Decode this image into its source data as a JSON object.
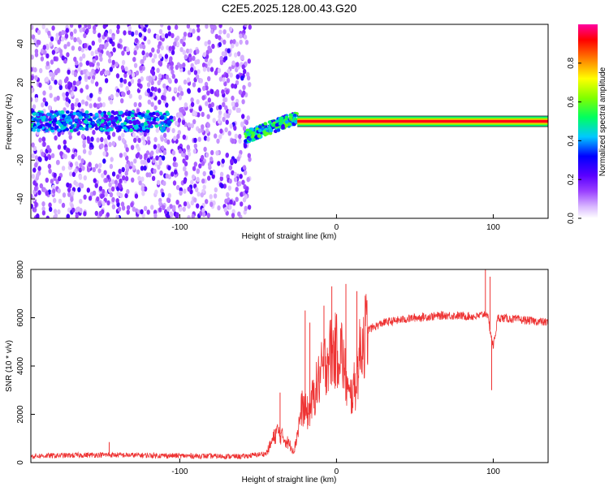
{
  "title": "C2E5.2025.128.00.43.G20",
  "chart_data": [
    {
      "type": "heatmap",
      "xlabel": "Height of straight line (km)",
      "ylabel": "Frequency (Hz)",
      "xlim": [
        -195,
        135
      ],
      "ylim": [
        -50,
        50
      ],
      "x_ticks": [
        -100,
        0,
        100
      ],
      "y_ticks": [
        -40,
        -20,
        0,
        20,
        40
      ],
      "colorbar": {
        "label": "Normalized spectral amplitude",
        "range": [
          0,
          1
        ],
        "ticks": [
          0.0,
          0.2,
          0.4,
          0.6,
          0.8
        ],
        "tick_labels": [
          "0.0",
          "0.2",
          "0.4",
          "0.6",
          "0.8"
        ],
        "colors": [
          "#ffffff",
          "#d9b8ff",
          "#7a00ff",
          "#0000ff",
          "#00e0ff",
          "#00ff00",
          "#ffff00",
          "#ff8000",
          "#ff0000",
          "#ff00a0"
        ]
      },
      "regions": [
        {
          "desc": "scattered noise",
          "x": [
            -195,
            -55
          ],
          "freq": [
            -50,
            50
          ],
          "amplitude": 0.1
        },
        {
          "desc": "noisy carrier",
          "x": [
            -195,
            -105
          ],
          "freq_center": 0,
          "amplitude": 0.35
        },
        {
          "desc": "drifting carrier",
          "x": [
            -58,
            -25
          ],
          "freq_center_start": -8,
          "freq_center_end": 2,
          "amplitude": 0.45
        },
        {
          "desc": "steady carrier",
          "x": [
            -25,
            135
          ],
          "freq_center": 0,
          "amplitude": 0.9
        }
      ]
    },
    {
      "type": "line",
      "xlabel": "Height of straight line (km)",
      "ylabel": "SNR (10 * v/v)",
      "xlim": [
        -195,
        135
      ],
      "ylim": [
        0,
        8000
      ],
      "x_ticks": [
        -100,
        0,
        100
      ],
      "y_ticks": [
        0,
        2000,
        4000,
        6000,
        8000
      ],
      "color": "#ee3333",
      "series_points": [
        [
          -195,
          250
        ],
        [
          -150,
          300
        ],
        [
          -100,
          260
        ],
        [
          -60,
          230
        ],
        [
          -45,
          350
        ],
        [
          -38,
          1300
        ],
        [
          -32,
          900
        ],
        [
          -27,
          500
        ],
        [
          -22,
          2300
        ],
        [
          -18,
          2000
        ],
        [
          -12,
          3300
        ],
        [
          -5,
          4500
        ],
        [
          3,
          4700
        ],
        [
          8,
          2600
        ],
        [
          12,
          3200
        ],
        [
          16,
          5000
        ],
        [
          20,
          5500
        ],
        [
          30,
          5800
        ],
        [
          50,
          6000
        ],
        [
          70,
          6100
        ],
        [
          90,
          6050
        ],
        [
          96,
          6200
        ],
        [
          100,
          4800
        ],
        [
          103,
          6000
        ],
        [
          120,
          5900
        ],
        [
          135,
          5800
        ]
      ],
      "spikes": [
        [
          -145,
          850
        ],
        [
          -36,
          2900
        ],
        [
          -20,
          6300
        ],
        [
          -17,
          5800
        ],
        [
          -8,
          6500
        ],
        [
          -3,
          7300
        ],
        [
          6,
          7400
        ],
        [
          13,
          7100
        ],
        [
          95,
          8000
        ],
        [
          98,
          7700
        ],
        [
          99,
          3000
        ]
      ]
    }
  ]
}
